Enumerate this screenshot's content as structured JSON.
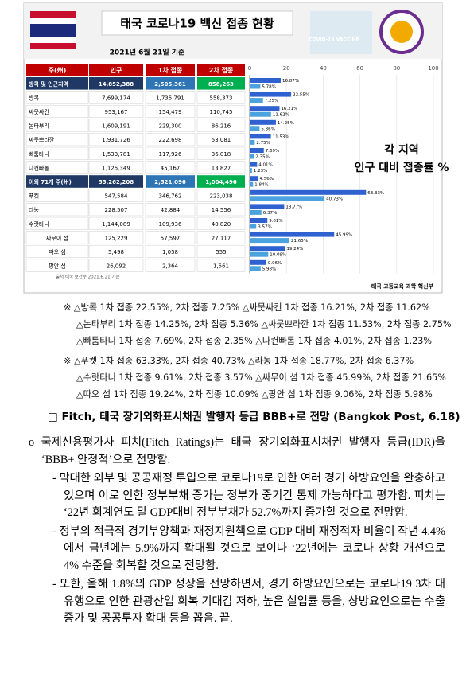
{
  "infographic": {
    "title": "태국 코로나19 백신 접종 현황",
    "date": "2021년 6월 21일 기준",
    "logo_text": "COVID-19 VACCINE",
    "table": {
      "header": [
        "주(州)",
        "인구",
        "1차 접종",
        "2차 접종"
      ],
      "rows": [
        [
          "방콕 및 인근지역",
          "14,852,388",
          "2,505,361",
          "858,263"
        ],
        [
          "방콕",
          "7,699,174",
          "1,735,791",
          "558,373"
        ],
        [
          "싸뭇싸컨",
          "953,167",
          "154,479",
          "110,745"
        ],
        [
          "논타부리",
          "1,609,191",
          "229,300",
          "86,216"
        ],
        [
          "싸뭇쁘라깐",
          "1,931,726",
          "222,698",
          "53,081"
        ],
        [
          "빠툼타니",
          "1,533,781",
          "117,926",
          "36,018"
        ],
        [
          "나컨빠톰",
          "1,125,349",
          "45,167",
          "13,827"
        ],
        [
          "이외 71개 주(州)",
          "55,262,208",
          "2,521,096",
          "1,004,496"
        ],
        [
          "푸켓",
          "547,584",
          "346,762",
          "223,038"
        ],
        [
          "라농",
          "228,507",
          "42,884",
          "14,556"
        ],
        [
          "수랏타니",
          "1,144,089",
          "109,936",
          "40,820"
        ],
        [
          "싸무이 섬",
          "125,229",
          "57,597",
          "27,117"
        ],
        [
          "따오 섬",
          "5,498",
          "1,058",
          "555"
        ],
        [
          "팡안 섬",
          "26,092",
          "2,364",
          "1,561"
        ]
      ]
    },
    "chart": {
      "type": "bar",
      "orientation": "horizontal",
      "xlim": [
        0,
        100
      ],
      "xticks": [
        0,
        20,
        40,
        60,
        80,
        100
      ],
      "grid": true,
      "series": [
        {
          "color": "#2f62d0",
          "values": [
            16.87,
            22.55,
            16.21,
            14.25,
            11.53,
            7.69,
            4.01,
            4.56,
            63.33,
            18.77,
            9.61,
            45.99,
            19.24,
            9.06
          ],
          "value_labels": [
            "16.87%",
            "22.55%",
            "16.21%",
            "14.25%",
            "11.53%",
            "7.69%",
            "4.01%",
            "4.56%",
            "63.33%",
            "18.77%",
            "9.61%",
            "45.99%",
            "19.24%",
            "9.06%"
          ]
        },
        {
          "color": "#4aa3df",
          "values": [
            5.78,
            7.25,
            11.62,
            5.36,
            2.75,
            2.35,
            1.23,
            1.84,
            40.73,
            6.37,
            3.57,
            21.65,
            10.09,
            5.98
          ],
          "value_labels": [
            "5.78%",
            "7.25%",
            "11.62%",
            "5.36%",
            "2.75%",
            "2.35%",
            "1.23%",
            "1.84%",
            "40.73%",
            "6.37%",
            "3.57%",
            "21.65%",
            "10.09%",
            "5.98%"
          ]
        }
      ],
      "annotation": [
        "각 지역",
        "인구 대비 접종률 %"
      ]
    },
    "source": "출처 태국 보건부 2021.6.21 기준",
    "footer": "태국 고등교육 과학 혁신부"
  },
  "notes": [
    "※ △방콕 1차 접종 22.55%, 2차 접종 7.25% △싸뭇싸컨 1차 접종 16.21%, 2차 접종 11.62%",
    "△논타부리 1차 접종 14.25%, 2차 접종 5.36% △싸뭇쁘라깐 1차 접종 11.53%, 2차 접종 2.75%",
    "△빠툼타니 1차 접종 7.69%, 2차 접종 2.35% △나컨빠톰 1차 접종 4.01%, 2차 접종 1.23%",
    "※ △푸켓 1차 접종 63.33%, 2차 접종 40.73% △라농 1차 접종 18.77%, 2차 접종 6.37%",
    "△수랏타니 1차 접종 9.61%, 2차 접종 3.57% △싸무이 섬 1차 접종 45.99%, 2차 접종 21.65%",
    "△따오 섬 1차 접종 19.24%, 2차 접종 10.09% △팡안 섬 1차 접종 9.06%, 2차 접종 5.98%"
  ],
  "section": {
    "heading": "□ Fitch, 태국 장기외화표시채권 발행자 등급 BBB+로 전망 (Bangkok Post, 6.18)",
    "paragraphs": [
      "o 국제신용평가사 피치(Fitch Ratings)는 태국 장기외화표시채권 발행자 등급(IDR)을 ‘BBB+ 안정적’으로 전망함.",
      "- 막대한 외부 및 공공재정 투입으로 코로나19로 인한 여러 경기 하방요인을 완충하고 있으며 이로 인한 정부부채 증가는 정부가 중기간 통제 가능하다고 평가함. 피치는 ‘22년 회계연도 말 GDP대비 정부부채가 52.7%까지 증가할 것으로 전망함.",
      "- 정부의 적극적 경기부양책과 재정지원책으로 GDP 대비 재정적자 비율이 작년 4.4%에서 금년에는 5.9%까지 확대될 것으로 보이나 ‘22년에는 코로나 상황 개선으로 4% 수준을 회복할 것으로 전망함.",
      "- 또한, 올해 1.8%의 GDP 성장을 전망하면서, 경기 하방요인으로는 코로나19 3차 대유행으로 인한 관광산업 회복 기대감 저하, 높은 실업률 등을, 상방요인으로는 수출 증가 및 공공투자 확대 등을 꼽음. 끝."
    ]
  }
}
